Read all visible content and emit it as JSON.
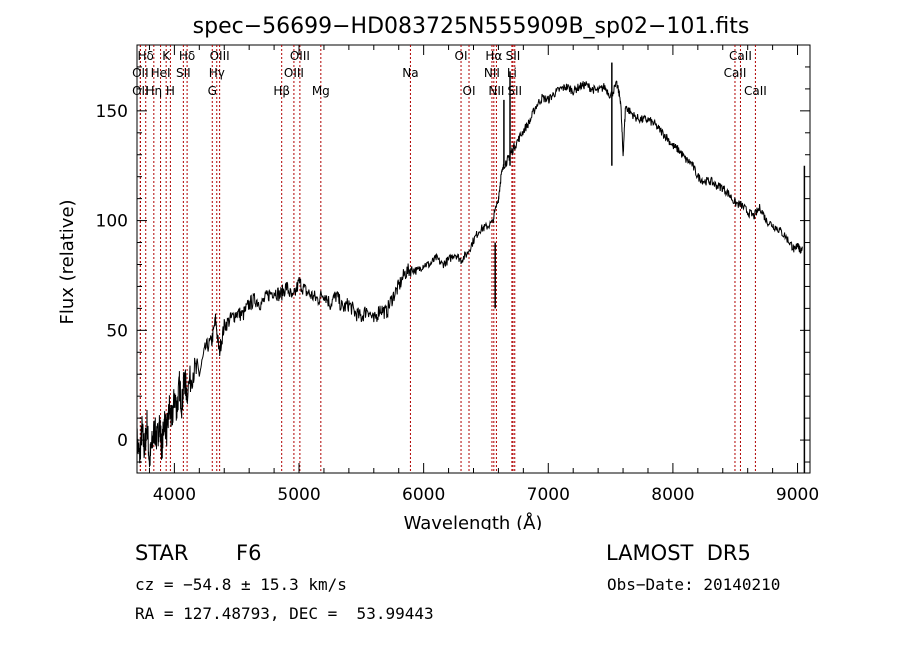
{
  "chart_data": {
    "type": "line",
    "title": "spec−56699−HD083725N555909B_sp02−101.fits",
    "xlabel": "Wavelength (Å)",
    "ylabel": "Flux (relative)",
    "xlim": [
      3700,
      9100
    ],
    "ylim": [
      -15,
      180
    ],
    "xticks": [
      4000,
      5000,
      6000,
      7000,
      8000,
      9000
    ],
    "yticks": [
      0,
      50,
      100,
      150
    ],
    "grid": false,
    "colors": {
      "spectrum": "#000000",
      "line_marker": "#b00000",
      "axes": "#000000"
    },
    "series": [
      {
        "x": [
          3700,
          3720,
          3740,
          3760,
          3780,
          3800,
          3820,
          3840,
          3860,
          3880,
          3900,
          3920,
          3940,
          3960,
          3980,
          4000,
          4020,
          4040,
          4060,
          4080,
          4100,
          4150,
          4200,
          4250,
          4300,
          4330,
          4360,
          4400,
          4450,
          4500,
          4550,
          4600,
          4650,
          4700,
          4750,
          4800,
          4850,
          4900,
          4950,
          5000,
          5050,
          5100,
          5150,
          5200,
          5250,
          5300,
          5350,
          5400,
          5450,
          5500,
          5550,
          5600,
          5650,
          5700,
          5750,
          5800,
          5850,
          5900,
          5950,
          6000,
          6050,
          6100,
          6150,
          6200,
          6250,
          6300,
          6350,
          6400,
          6450,
          6500,
          6550,
          6600,
          6620,
          6650,
          6680,
          6700,
          6750,
          6800,
          6850,
          6900,
          6950,
          7000,
          7050,
          7100,
          7150,
          7200,
          7250,
          7300,
          7350,
          7400,
          7450,
          7500,
          7550,
          7580,
          7600,
          7620,
          7650,
          7700,
          7750,
          7800,
          7850,
          7900,
          7950,
          8000,
          8050,
          8100,
          8150,
          8200,
          8250,
          8300,
          8350,
          8400,
          8450,
          8500,
          8550,
          8600,
          8650,
          8700,
          8750,
          8800,
          8850,
          8900,
          8950,
          8980,
          9000,
          9020,
          9040
        ],
        "y": [
          0,
          -8,
          5,
          -5,
          8,
          -10,
          -2,
          5,
          0,
          8,
          -4,
          10,
          3,
          15,
          8,
          20,
          14,
          25,
          16,
          28,
          22,
          32,
          30,
          42,
          45,
          55,
          40,
          52,
          55,
          58,
          57,
          62,
          64,
          62,
          66,
          68,
          66,
          70,
          64,
          72,
          68,
          66,
          64,
          67,
          62,
          66,
          60,
          62,
          58,
          56,
          60,
          54,
          60,
          58,
          65,
          70,
          76,
          78,
          77,
          80,
          80,
          83,
          80,
          82,
          85,
          82,
          85,
          91,
          96,
          97,
          99,
          110,
          120,
          126,
          128,
          131,
          136,
          141,
          145,
          152,
          156,
          155,
          158,
          160,
          161,
          159,
          161,
          162,
          160,
          159,
          161,
          157,
          162,
          155,
          130,
          152,
          150,
          147,
          146,
          146,
          144,
          141,
          138,
          134,
          132,
          128,
          126,
          120,
          118,
          118,
          116,
          115,
          112,
          108,
          107,
          104,
          102,
          106,
          100,
          98,
          96,
          93,
          89,
          86,
          90,
          86,
          88
        ]
      }
    ],
    "spikes": [
      {
        "x": 3715,
        "y": 60
      },
      {
        "x": 6644,
        "y": 155
      },
      {
        "x": 6693,
        "y": 168
      },
      {
        "x": 7510,
        "y": 172
      },
      {
        "x": 6574,
        "y": 90
      },
      {
        "x": 9055,
        "y": 125
      }
    ],
    "lines": [
      {
        "label": "Hδ",
        "x": 3770,
        "row": 0
      },
      {
        "label": "OII",
        "x": 3727,
        "row": 1
      },
      {
        "label": "OII",
        "x": 3727,
        "row": 2
      },
      {
        "label": "K",
        "x": 3934,
        "row": 0
      },
      {
        "label": "HeI",
        "x": 3889,
        "row": 1
      },
      {
        "label": "Hη",
        "x": 3835,
        "row": 2
      },
      {
        "label": "H",
        "x": 3968,
        "row": 2
      },
      {
        "label": "Hδ",
        "x": 4102,
        "row": 0
      },
      {
        "label": "SII",
        "x": 4072,
        "row": 1
      },
      {
        "label": "OIII",
        "x": 4363,
        "row": 0
      },
      {
        "label": "Hγ",
        "x": 4340,
        "row": 1
      },
      {
        "label": "G",
        "x": 4304,
        "row": 2
      },
      {
        "label": "Hβ",
        "x": 4861,
        "row": 2
      },
      {
        "label": "OIII",
        "x": 5007,
        "row": 0
      },
      {
        "label": "OIII",
        "x": 4959,
        "row": 1
      },
      {
        "label": "Mg",
        "x": 5175,
        "row": 2
      },
      {
        "label": "Na",
        "x": 5894,
        "row": 1
      },
      {
        "label": "OI",
        "x": 6300,
        "row": 0
      },
      {
        "label": "OI",
        "x": 6364,
        "row": 2
      },
      {
        "label": "Hα",
        "x": 6563,
        "row": 0
      },
      {
        "label": "NII",
        "x": 6548,
        "row": 1
      },
      {
        "label": "NII",
        "x": 6584,
        "row": 2
      },
      {
        "label": "SII",
        "x": 6717,
        "row": 0
      },
      {
        "label": "Li",
        "x": 6708,
        "row": 1
      },
      {
        "label": "SII",
        "x": 6731,
        "row": 2
      },
      {
        "label": "CaII",
        "x": 8542,
        "row": 0
      },
      {
        "label": "CaII",
        "x": 8498,
        "row": 1
      },
      {
        "label": "CaII",
        "x": 8662,
        "row": 2
      }
    ]
  },
  "info": {
    "object_class": "STAR",
    "subclass": "F6",
    "survey": "LAMOST  DR5",
    "cz": "cz = −54.8 ± 15.3 km/s",
    "obs_date": "Obs−Date: 20140210",
    "coords": "RA = 127.48793, DEC =  53.99443"
  }
}
